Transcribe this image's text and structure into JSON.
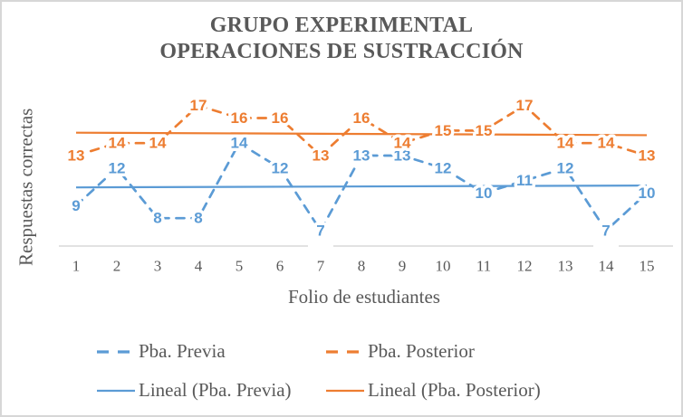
{
  "title": {
    "line1": "GRUPO EXPERIMENTAL",
    "line2": "OPERACIONES DE SUSTRACCIÓN"
  },
  "colors": {
    "series_blue": "#5B9BD5",
    "series_orange": "#ED7D31",
    "text_gray": "#595959",
    "axis_gray": "#D9D9D9"
  },
  "chart_data": {
    "type": "line",
    "title": "GRUPO EXPERIMENTAL OPERACIONES DE SUSTRACCIÓN",
    "xlabel": "Folio de estudiantes",
    "ylabel": "Respuestas correctas",
    "x": [
      1,
      2,
      3,
      4,
      5,
      6,
      7,
      8,
      9,
      10,
      11,
      12,
      13,
      14,
      15
    ],
    "series": [
      {
        "name": "Pba. Previa",
        "type": "line-dashed",
        "color": "#5B9BD5",
        "values": [
          9,
          12,
          8,
          8,
          14,
          12,
          7,
          13,
          13,
          12,
          10,
          11,
          12,
          7,
          10
        ]
      },
      {
        "name": "Pba. Posterior",
        "type": "line-dashed",
        "color": "#ED7D31",
        "values": [
          13,
          14,
          14,
          17,
          16,
          16,
          13,
          16,
          14,
          15,
          15,
          17,
          14,
          14,
          13
        ]
      },
      {
        "name": "Lineal (Pba. Previa)",
        "type": "trendline",
        "color": "#5B9BD5",
        "source": 0
      },
      {
        "name": "Lineal (Pba. Posterior)",
        "type": "trendline",
        "color": "#ED7D31",
        "source": 1
      }
    ],
    "data_labels": true,
    "grid": false,
    "legend_position": "bottom"
  }
}
